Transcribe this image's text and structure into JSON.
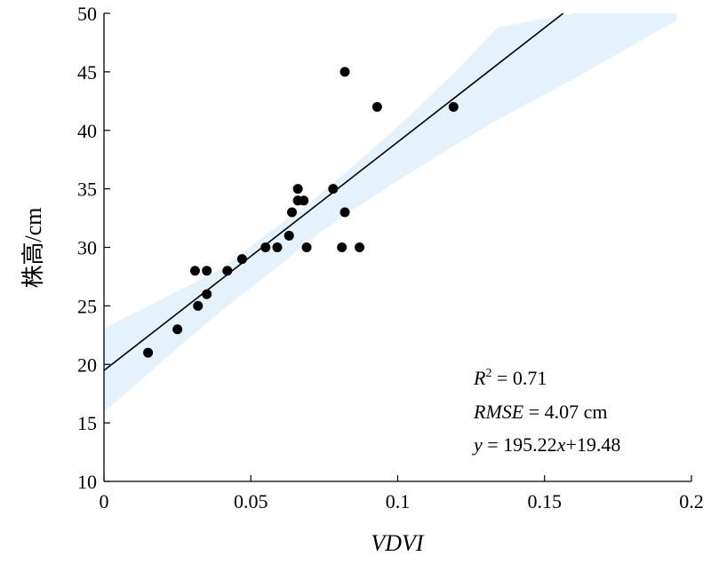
{
  "chart_data": {
    "type": "scatter",
    "title": "",
    "xlabel": "VDVI",
    "ylabel": "株高/cm",
    "xlim": [
      0,
      0.2
    ],
    "ylim": [
      10,
      50
    ],
    "xticks": [
      0,
      0.05,
      0.1,
      0.15,
      0.2
    ],
    "xtick_labels": [
      "0",
      "0.05",
      "0.1",
      "0.15",
      "0.2"
    ],
    "yticks": [
      10,
      15,
      20,
      25,
      30,
      35,
      40,
      45,
      50
    ],
    "ytick_labels": [
      "10",
      "15",
      "20",
      "25",
      "30",
      "35",
      "40",
      "45",
      "50"
    ],
    "grid": false,
    "points": [
      {
        "x": 0.015,
        "y": 21
      },
      {
        "x": 0.025,
        "y": 23
      },
      {
        "x": 0.031,
        "y": 28
      },
      {
        "x": 0.032,
        "y": 25
      },
      {
        "x": 0.035,
        "y": 28
      },
      {
        "x": 0.035,
        "y": 26
      },
      {
        "x": 0.042,
        "y": 28
      },
      {
        "x": 0.047,
        "y": 29
      },
      {
        "x": 0.055,
        "y": 30
      },
      {
        "x": 0.059,
        "y": 30
      },
      {
        "x": 0.063,
        "y": 31
      },
      {
        "x": 0.064,
        "y": 33
      },
      {
        "x": 0.066,
        "y": 35
      },
      {
        "x": 0.066,
        "y": 34
      },
      {
        "x": 0.068,
        "y": 34
      },
      {
        "x": 0.069,
        "y": 30
      },
      {
        "x": 0.078,
        "y": 35
      },
      {
        "x": 0.081,
        "y": 30
      },
      {
        "x": 0.082,
        "y": 33
      },
      {
        "x": 0.082,
        "y": 45
      },
      {
        "x": 0.087,
        "y": 30
      },
      {
        "x": 0.093,
        "y": 42
      },
      {
        "x": 0.119,
        "y": 42
      }
    ],
    "regression": {
      "slope": 195.22,
      "intercept": 19.48
    },
    "confidence_band": {
      "x": [
        0,
        0.02,
        0.04,
        0.06,
        0.07,
        0.08,
        0.1,
        0.12,
        0.134,
        0.16,
        0.195
      ],
      "lower": [
        15.9,
        20.3,
        24.6,
        28.5,
        30.6,
        32.4,
        35.7,
        38.8,
        40.9,
        44.4,
        49.4
      ],
      "upper": [
        23.1,
        25.6,
        28.2,
        32.0,
        33.8,
        35.9,
        40.3,
        45.1,
        48.8,
        50,
        50
      ]
    },
    "annotations": {
      "r2_symbol": "R",
      "r2_superscript": "2",
      "r2_value": " = 0.71",
      "rmse_symbol": "RMSE",
      "rmse_value": " = 4.07 cm",
      "eq_y": "y",
      "eq_mid": " = 195.22",
      "eq_x": "x",
      "eq_end": "+19.48"
    },
    "colors": {
      "points": "#000000",
      "line": "#000000",
      "band": "#e6f2fb"
    }
  }
}
